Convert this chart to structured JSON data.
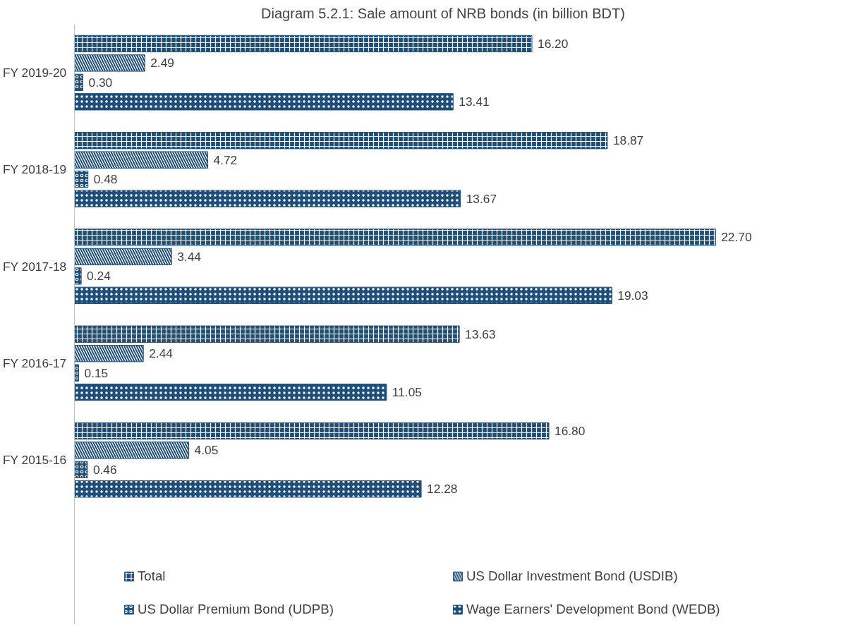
{
  "chart_data": {
    "type": "bar",
    "orientation": "horizontal",
    "title": "Diagram 5.2.1: Sale amount of NRB bonds (in billion BDT)",
    "categories": [
      "FY 2019-20",
      "FY 2018-19",
      "FY 2017-18",
      "FY 2016-17",
      "FY 2015-16"
    ],
    "series": [
      {
        "name": "Total",
        "color": "#1f4e79",
        "values": [
          16.2,
          18.87,
          22.7,
          13.63,
          16.8
        ],
        "value_labels": [
          "16.20",
          "18.87",
          "22.70",
          "13.63",
          "16.80"
        ]
      },
      {
        "name": "US Dollar Investment Bond (USDIB)",
        "color": "#1f4e79",
        "values": [
          2.49,
          4.72,
          3.44,
          2.44,
          4.05
        ],
        "value_labels": [
          "2.49",
          "4.72",
          "3.44",
          "2.44",
          "4.05"
        ]
      },
      {
        "name": "US Dollar Premium Bond (UDPB)",
        "color": "#1f4e79",
        "values": [
          0.3,
          0.48,
          0.24,
          0.15,
          0.46
        ],
        "value_labels": [
          "0.30",
          "0.48",
          "0.24",
          "0.15",
          "0.46"
        ]
      },
      {
        "name": "Wage Earners' Development Bond (WEDB)",
        "color": "#1f4e79",
        "values": [
          13.41,
          13.67,
          19.03,
          11.05,
          12.28
        ],
        "value_labels": [
          "13.41",
          "13.67",
          "19.03",
          "11.05",
          "12.28"
        ]
      }
    ],
    "legend": "bottom"
  }
}
